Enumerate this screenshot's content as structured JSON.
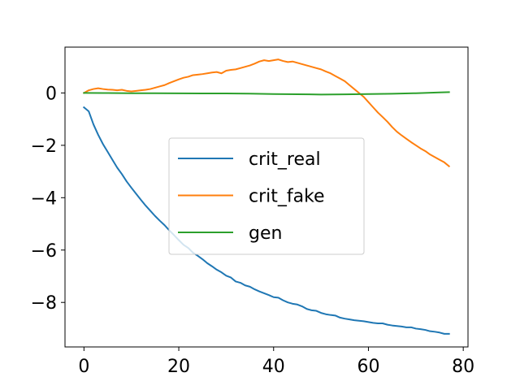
{
  "chart_data": {
    "type": "line",
    "title": "",
    "xlabel": "",
    "ylabel": "",
    "xlim": [
      -4,
      81
    ],
    "ylim": [
      -9.7,
      1.75
    ],
    "xticks": [
      0,
      20,
      40,
      60,
      80
    ],
    "yticks": [
      0,
      -2,
      -4,
      -6,
      -8
    ],
    "xtick_labels": [
      "0",
      "20",
      "40",
      "60",
      "80"
    ],
    "ytick_labels": [
      "0",
      "−2",
      "−4",
      "−6",
      "−8"
    ],
    "grid": false,
    "legend_position": "center",
    "series": [
      {
        "name": "crit_real",
        "color": "#1f77b4",
        "x": [
          0,
          1,
          2,
          3,
          4,
          5,
          6,
          7,
          8,
          9,
          10,
          11,
          12,
          13,
          14,
          15,
          16,
          17,
          18,
          19,
          20,
          21,
          22,
          23,
          24,
          25,
          26,
          27,
          28,
          29,
          30,
          31,
          32,
          33,
          34,
          35,
          36,
          37,
          38,
          39,
          40,
          41,
          42,
          43,
          44,
          45,
          46,
          47,
          48,
          49,
          50,
          51,
          52,
          53,
          54,
          55,
          56,
          57,
          58,
          59,
          60,
          61,
          62,
          63,
          64,
          65,
          66,
          67,
          68,
          69,
          70,
          71,
          72,
          73,
          74,
          75,
          76,
          77
        ],
        "values": [
          -0.55,
          -0.7,
          -1.2,
          -1.6,
          -1.95,
          -2.25,
          -2.55,
          -2.85,
          -3.1,
          -3.38,
          -3.62,
          -3.85,
          -4.08,
          -4.3,
          -4.5,
          -4.7,
          -4.88,
          -5.05,
          -5.25,
          -5.43,
          -5.62,
          -5.8,
          -5.92,
          -6.1,
          -6.22,
          -6.35,
          -6.5,
          -6.62,
          -6.75,
          -6.85,
          -6.98,
          -7.05,
          -7.2,
          -7.25,
          -7.35,
          -7.4,
          -7.5,
          -7.58,
          -7.65,
          -7.72,
          -7.8,
          -7.82,
          -7.92,
          -8.0,
          -8.05,
          -8.08,
          -8.15,
          -8.25,
          -8.3,
          -8.32,
          -8.4,
          -8.45,
          -8.48,
          -8.5,
          -8.58,
          -8.62,
          -8.65,
          -8.68,
          -8.7,
          -8.72,
          -8.75,
          -8.78,
          -8.8,
          -8.8,
          -8.85,
          -8.88,
          -8.9,
          -8.92,
          -8.95,
          -8.95,
          -9.0,
          -9.02,
          -9.05,
          -9.1,
          -9.12,
          -9.15,
          -9.2,
          -9.2
        ]
      },
      {
        "name": "crit_fake",
        "color": "#ff7f0e",
        "x": [
          0,
          1,
          2,
          3,
          4,
          5,
          6,
          7,
          8,
          9,
          10,
          11,
          12,
          13,
          14,
          15,
          16,
          17,
          18,
          19,
          20,
          21,
          22,
          23,
          24,
          25,
          26,
          27,
          28,
          29,
          30,
          31,
          32,
          33,
          34,
          35,
          36,
          37,
          38,
          39,
          40,
          41,
          42,
          43,
          44,
          45,
          46,
          47,
          48,
          49,
          50,
          51,
          52,
          53,
          54,
          55,
          56,
          57,
          58,
          59,
          60,
          61,
          62,
          63,
          64,
          65,
          66,
          67,
          68,
          69,
          70,
          71,
          72,
          73,
          74,
          75,
          76,
          77
        ],
        "values": [
          0.0,
          0.1,
          0.15,
          0.18,
          0.15,
          0.13,
          0.12,
          0.1,
          0.12,
          0.08,
          0.06,
          0.08,
          0.1,
          0.12,
          0.15,
          0.2,
          0.25,
          0.3,
          0.38,
          0.45,
          0.52,
          0.58,
          0.62,
          0.68,
          0.7,
          0.72,
          0.75,
          0.78,
          0.8,
          0.75,
          0.85,
          0.88,
          0.9,
          0.95,
          1.0,
          1.05,
          1.12,
          1.2,
          1.25,
          1.22,
          1.25,
          1.28,
          1.22,
          1.18,
          1.2,
          1.15,
          1.1,
          1.05,
          1.0,
          0.95,
          0.9,
          0.82,
          0.75,
          0.65,
          0.55,
          0.45,
          0.3,
          0.15,
          0.0,
          -0.15,
          -0.35,
          -0.55,
          -0.75,
          -0.92,
          -1.1,
          -1.3,
          -1.48,
          -1.62,
          -1.75,
          -1.88,
          -2.0,
          -2.12,
          -2.22,
          -2.35,
          -2.45,
          -2.55,
          -2.65,
          -2.8
        ]
      },
      {
        "name": "gen",
        "color": "#2ca02c",
        "x": [
          0,
          5,
          10,
          15,
          20,
          25,
          30,
          35,
          40,
          45,
          50,
          55,
          60,
          65,
          70,
          75,
          77
        ],
        "values": [
          0.0,
          -0.005,
          -0.01,
          -0.01,
          -0.015,
          -0.02,
          -0.02,
          -0.025,
          -0.04,
          -0.05,
          -0.06,
          -0.055,
          -0.04,
          -0.03,
          -0.01,
          0.02,
          0.03
        ]
      }
    ]
  }
}
